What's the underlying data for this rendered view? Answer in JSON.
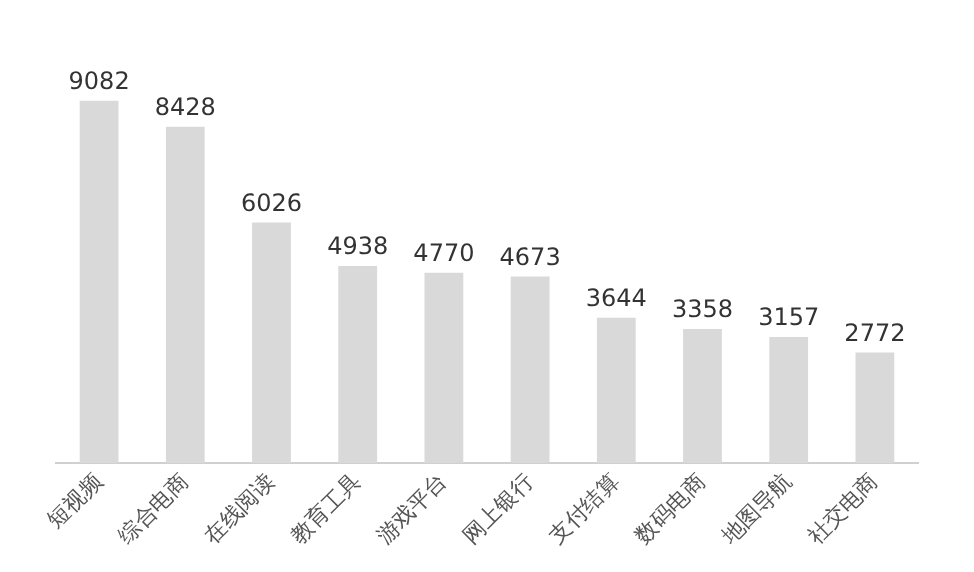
{
  "chart_data": {
    "type": "bar",
    "categories": [
      "短视频",
      "综合电商",
      "在线阅读",
      "教育工具",
      "游戏平台",
      "网上银行",
      "支付结算",
      "数码电商",
      "地图导航",
      "社交电商"
    ],
    "values": [
      9082,
      8428,
      6026,
      4938,
      4770,
      4673,
      3644,
      3358,
      3157,
      2772
    ],
    "color": "#d9d9d9",
    "data_labels": true,
    "grid": false,
    "legend": false,
    "tick_labels": "x"
  }
}
